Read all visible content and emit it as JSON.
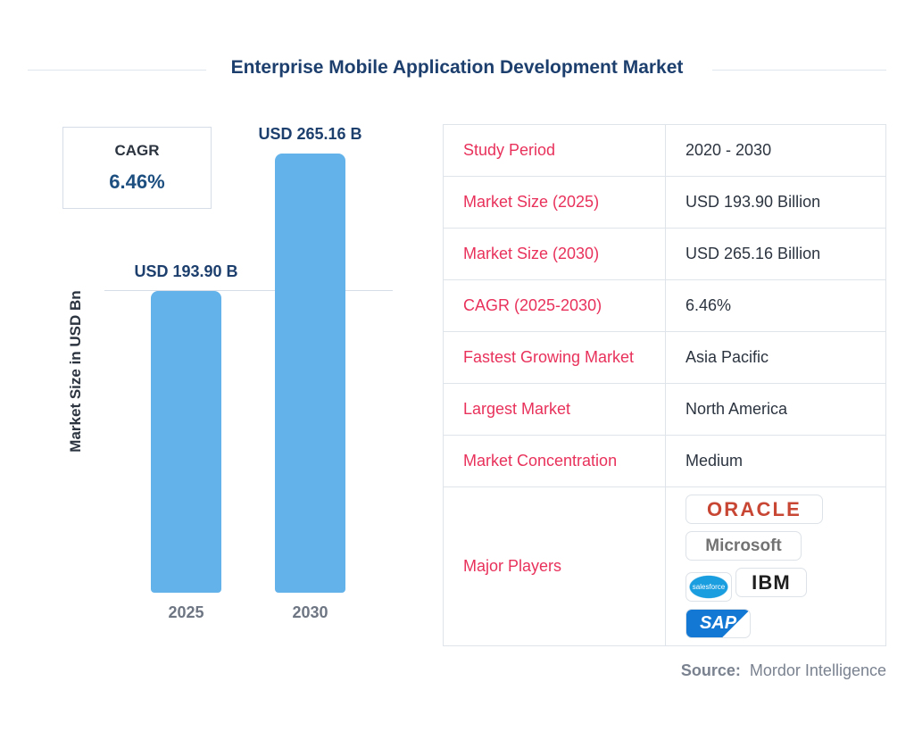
{
  "title": "Enterprise Mobile Application Development Market",
  "cagr": {
    "label": "CAGR",
    "value": "6.46%"
  },
  "chart_data": {
    "type": "bar",
    "categories": [
      "2025",
      "2030"
    ],
    "values": [
      193.9,
      265.16
    ],
    "data_labels": [
      "USD 193.90 B",
      "USD 265.16 B"
    ],
    "ylabel": "Market Size in USD Bn",
    "color": "#63b2ea",
    "grid": false
  },
  "table": [
    {
      "k": "Study Period",
      "v": "2020 - 2030"
    },
    {
      "k": "Market Size (2025)",
      "v": "USD 193.90 Billion"
    },
    {
      "k": "Market Size (2030)",
      "v": "USD 265.16 Billion"
    },
    {
      "k": "CAGR (2025-2030)",
      "v": "6.46%"
    },
    {
      "k": "Fastest Growing Market",
      "v": "Asia Pacific"
    },
    {
      "k": "Largest Market",
      "v": "North America"
    },
    {
      "k": "Market Concentration",
      "v": "Medium"
    },
    {
      "k": "Major Players"
    }
  ],
  "players": [
    "ORACLE",
    "Microsoft",
    "salesforce",
    "IBM",
    "SAP"
  ],
  "source": {
    "label": "Source:",
    "value": "Mordor Intelligence"
  }
}
